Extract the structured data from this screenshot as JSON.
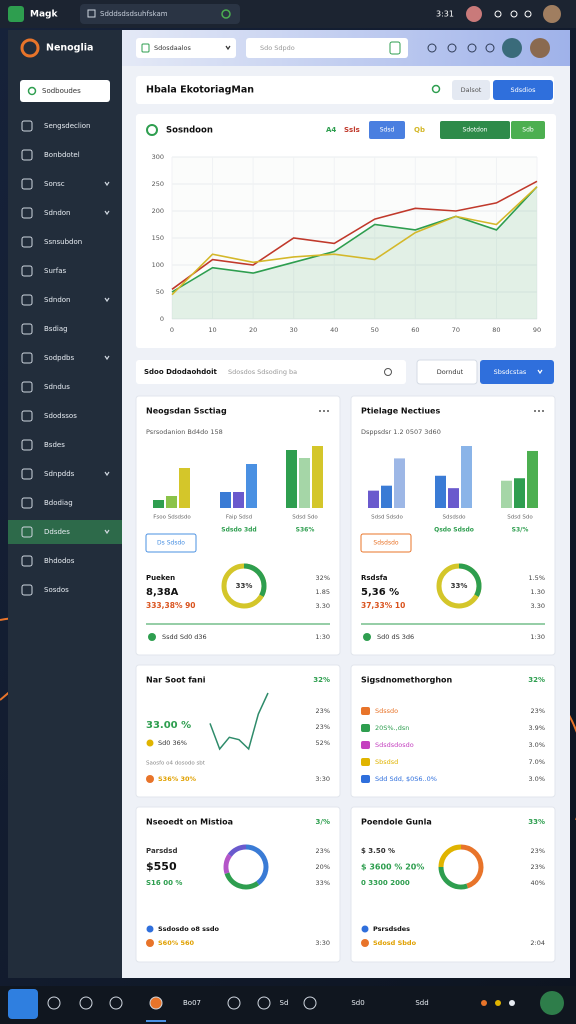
{
  "top_bar": {
    "app": "Magk",
    "search": "Sdddsdsdsuhfskam",
    "time": "3:31"
  },
  "sidebar": {
    "brand": "Nenoglia",
    "button": "Sodboudes",
    "active": 14,
    "items": [
      {
        "label": "Sengsdeclion",
        "chevron": false
      },
      {
        "label": "Bonbdotel",
        "chevron": false
      },
      {
        "label": "Sonsc",
        "chevron": true
      },
      {
        "label": "Sdndon",
        "chevron": true
      },
      {
        "label": "Ssnsubdon",
        "chevron": false
      },
      {
        "label": "Surfas",
        "chevron": false
      },
      {
        "label": "Sdndon",
        "chevron": true
      },
      {
        "label": "Bsdiag",
        "chevron": false
      },
      {
        "label": "Sodpdbs",
        "chevron": true
      },
      {
        "label": "Sdndus",
        "chevron": false
      },
      {
        "label": "Sdodssos",
        "chevron": false
      },
      {
        "label": "Bsdes",
        "chevron": false
      },
      {
        "label": "Sdnpdds",
        "chevron": true
      },
      {
        "label": "Bdodiag",
        "chevron": false
      },
      {
        "label": "Ddsdes",
        "chevron": true
      },
      {
        "label": "Bhdodos",
        "chevron": false
      },
      {
        "label": "Sosdos",
        "chevron": false
      }
    ]
  },
  "header": {
    "dropdown": "Sdosdaalos",
    "search": "Sdo Sdpdo",
    "title": "Hbala EkotoriagMan",
    "button_1": "Dalsot",
    "button_2": "Sdsdios"
  },
  "chart_controls": {
    "button_blue": "Sdsd",
    "button_green": "Sdotdon",
    "button_small": "Sdb"
  },
  "chart_data": {
    "type": "line",
    "title": "Sosndoon",
    "categories": [
      "0",
      "10",
      "20",
      "30",
      "40",
      "50",
      "60",
      "70",
      "80",
      "90"
    ],
    "ylim": [
      0,
      300
    ],
    "yticks": [
      0,
      50,
      100,
      150,
      200,
      250,
      300
    ],
    "grid": true,
    "series": [
      {
        "name": "A4",
        "color": "#2e9e4f",
        "values": [
          50,
          95,
          85,
          105,
          125,
          175,
          165,
          190,
          165,
          245
        ]
      },
      {
        "name": "Ssls",
        "color": "#c0392b",
        "values": [
          55,
          110,
          100,
          150,
          140,
          185,
          205,
          200,
          215,
          255
        ]
      },
      {
        "name": "Qb",
        "color": "#d4b82a",
        "values": [
          45,
          120,
          105,
          115,
          120,
          110,
          160,
          190,
          175,
          245
        ]
      }
    ]
  },
  "search_bar": {
    "title": "Sdoo Ddodaohdoit",
    "placeholder": "Sdosdos Sdsoding ba",
    "button_1": "Dorndut",
    "button_2": "Sbsdcstas"
  },
  "cards": [
    {
      "title": "Neogsdan Ssctiag",
      "subtitle": "Psrsodanion Bd4do 158",
      "groups": [
        {
          "label": "Fsoo Sdsdsdo",
          "values": [
            8,
            12,
            40
          ],
          "colors": [
            "#2e9e4f",
            "#8bc34a",
            "#d4c62a"
          ]
        },
        {
          "label": "Faip Sdsd",
          "caption": "Sdsdo 3dd",
          "values": [
            16,
            16,
            44
          ],
          "colors": [
            "#3a7bd5",
            "#6a5acd",
            "#4a90e2"
          ]
        },
        {
          "label": "Sdsd Sdo",
          "caption": "S36%",
          "values": [
            58,
            50,
            62
          ],
          "colors": [
            "#2e9e4f",
            "#a5d6a7",
            "#d4c62a"
          ]
        }
      ],
      "tag": "Ds Sdsdo",
      "tag_color": "#4a90e2",
      "donut": {
        "value": 33,
        "label": "33%"
      },
      "stat_label": "Pueken",
      "stat_value": "8,38A",
      "stat_change": "333,38% 90",
      "side": [
        "32%",
        "1.85",
        "3.30"
      ],
      "footer": "Ssdd Sd0 d36",
      "footer_num": "1:30"
    },
    {
      "title": "Ptielage Nectiues",
      "subtitle": "Dsppsdsr 1.2 0507 3d60",
      "groups": [
        {
          "label": "Sdsd Sdsdo",
          "values": [
            14,
            18,
            40
          ],
          "colors": [
            "#6a5acd",
            "#3a7bd5",
            "#9db7e6"
          ]
        },
        {
          "label": "Sdsdsdo",
          "caption": "Qsdo Sdsdo",
          "values": [
            26,
            16,
            50
          ],
          "colors": [
            "#3a7bd5",
            "#6a5acd",
            "#8ab4e8"
          ]
        },
        {
          "label": "Sdsd Sdo",
          "caption": "S3/%",
          "values": [
            22,
            24,
            46
          ],
          "colors": [
            "#a5d6a7",
            "#2e9e4f",
            "#4caf50"
          ]
        }
      ],
      "tag": "Sdsdsdo",
      "tag_color": "#e8742a",
      "donut": {
        "value": 33,
        "label": "33%"
      },
      "stat_label": "Rsdsfa",
      "stat_value": "5,36 %",
      "stat_change": "37,33% 10",
      "side": [
        "1.5%",
        "1.30",
        "3.30"
      ],
      "footer": "Sd0 dS 3d6",
      "footer_num": "1:30"
    },
    {
      "title": "Nar Soot fani",
      "badge": "32%",
      "big": "33.00 %",
      "big_sub": "Sd0 36%",
      "spark": [
        62,
        40,
        50,
        48,
        40,
        70,
        88
      ],
      "side": [
        "23%",
        "23%",
        "52%"
      ],
      "note": "Saosfo o4 dosodo sbt",
      "footer": "S36% 30%",
      "footer_num": "3:30"
    },
    {
      "title": "Sigsdnomethorghon",
      "badge": "32%",
      "rows": [
        {
          "text": "Sdssdo",
          "value": "23%",
          "color": "#e8742a"
        },
        {
          "text": "20S%.,dsn",
          "value": "3.9%",
          "color": "#2e9e4f"
        },
        {
          "text": "Sdsdsdosdo",
          "value": "3.0%",
          "color": "#c43fbf"
        },
        {
          "text": "Sbsdsd",
          "value": "7.0%",
          "color": "#e0b400"
        },
        {
          "text": "Sdd Sdd, $0S6..0%",
          "value": "3.0%",
          "color": "#2f6fdc"
        }
      ]
    },
    {
      "title": "Nseoedt on Mistioa",
      "badge": "3/%",
      "lines": [
        {
          "text": "Parsdsd",
          "color": "#333",
          "size": 7
        },
        {
          "text": "$550",
          "color": "#111",
          "size": 11
        },
        {
          "text": "S16 00 %",
          "color": "#2e9e4f",
          "size": 7
        }
      ],
      "segments": [
        {
          "value": 40,
          "color": "#3a7bd5"
        },
        {
          "value": 30,
          "color": "#2e9e4f"
        },
        {
          "value": 15,
          "color": "#b455c8"
        },
        {
          "value": 15,
          "color": "#6a5acd"
        }
      ],
      "side": [
        "23%",
        "20%",
        "33%"
      ],
      "note": "Ssdosdo o8 ssdo",
      "footer": "S60% 560",
      "footer_num": "3:30"
    },
    {
      "title": "Poendole Gunla",
      "badge": "33%",
      "lines": [
        {
          "text": "$ 3.50 %",
          "color": "#333",
          "size": 7
        },
        {
          "text": "$ 3600 % 20%",
          "color": "#2e9e4f",
          "size": 8
        },
        {
          "text": "0 3300 2000",
          "color": "#2e9e4f",
          "size": 7
        }
      ],
      "segments": [
        {
          "value": 45,
          "color": "#e8742a"
        },
        {
          "value": 30,
          "color": "#2e9e4f"
        },
        {
          "value": 25,
          "color": "#e0b400"
        }
      ],
      "side": [
        "23%",
        "23%",
        "40%"
      ],
      "note": "Psrsdsdes",
      "footer": "Sdosd Sbdo",
      "footer_num": "2:04"
    }
  ],
  "taskbar": {
    "items": [
      "Bo07",
      "Sd",
      "Sd0",
      "Sdd"
    ]
  }
}
